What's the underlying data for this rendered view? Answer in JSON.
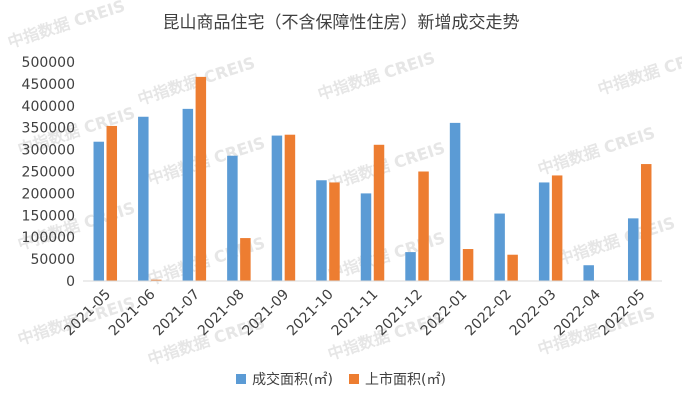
{
  "chart_data": {
    "type": "bar",
    "title": "昆山商品住宅（不含保障性住房）新增成交走势",
    "categories": [
      "2021-05",
      "2021-06",
      "2021-07",
      "2021-08",
      "2021-09",
      "2021-10",
      "2021-11",
      "2021-12",
      "2022-01",
      "2022-02",
      "2022-03",
      "2022-04",
      "2022-05"
    ],
    "series": [
      {
        "name": "成交面积(㎡)",
        "color": "#5b9bd5",
        "values": [
          318000,
          375000,
          393000,
          286000,
          332000,
          230000,
          200000,
          66000,
          361000,
          154000,
          225000,
          36000,
          143000
        ]
      },
      {
        "name": "上市面积(㎡)",
        "color": "#ed7d31",
        "values": [
          354000,
          3000,
          466000,
          98000,
          334000,
          225000,
          311000,
          250000,
          73000,
          60000,
          241000,
          0,
          267000
        ]
      }
    ],
    "ylim": [
      0,
      500000
    ],
    "yticks": [
      "0",
      "50000",
      "100000",
      "150000",
      "200000",
      "250000",
      "300000",
      "350000",
      "400000",
      "450000",
      "500000"
    ],
    "grid": false,
    "legend_position": "bottom",
    "watermark": "中指数据 CREIS"
  }
}
